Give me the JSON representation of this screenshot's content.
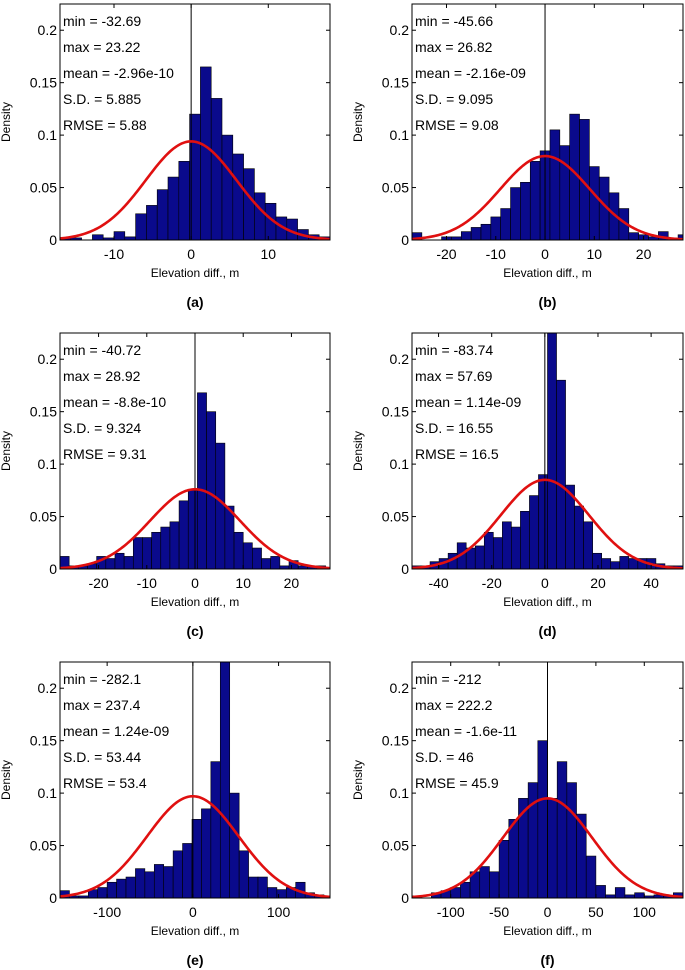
{
  "figure": {
    "panels_description": "Six density histograms of elevation difference with fitted normal curves"
  },
  "chart_data": [
    {
      "type": "bar",
      "overlay": "normal-fit",
      "panel_label": "(a)",
      "title": "",
      "xlabel": "Elevation diff., m",
      "ylabel": "Density",
      "xlim": [
        -17,
        18
      ],
      "ylim": [
        0,
        0.225
      ],
      "xticks": [
        -10,
        0,
        10
      ],
      "xtick_labels": [
        "-10",
        "0",
        "10"
      ],
      "yticks": [
        0,
        0.05,
        0.1,
        0.15,
        0.2
      ],
      "ytick_labels": [
        "0",
        "0.05",
        "0.1",
        "0.15",
        "0.2"
      ],
      "stats": [
        "min = -32.69",
        "max = 23.22",
        "mean = -2.96e-10",
        "S.D. = 5.885",
        "RMSE = 5.88"
      ],
      "bin_start": -17,
      "bin_width": 1.4,
      "values": [
        0.002,
        0.002,
        0.0,
        0.005,
        0.002,
        0.008,
        0.003,
        0.025,
        0.033,
        0.048,
        0.06,
        0.075,
        0.12,
        0.165,
        0.135,
        0.1,
        0.082,
        0.068,
        0.045,
        0.035,
        0.022,
        0.02,
        0.01,
        0.005,
        0.003
      ],
      "curve": {
        "mean": 0,
        "sd": 5.885,
        "peak": 0.094
      }
    },
    {
      "type": "bar",
      "overlay": "normal-fit",
      "panel_label": "(b)",
      "title": "",
      "xlabel": "Elevation diff., m",
      "ylabel": "Density",
      "xlim": [
        -27,
        28
      ],
      "ylim": [
        0,
        0.225
      ],
      "xticks": [
        -20,
        -10,
        0,
        10,
        20
      ],
      "xtick_labels": [
        "-20",
        "-10",
        "0",
        "10",
        "20"
      ],
      "yticks": [
        0,
        0.05,
        0.1,
        0.15,
        0.2
      ],
      "ytick_labels": [
        "0",
        "0.05",
        "0.1",
        "0.15",
        "0.2"
      ],
      "stats": [
        "min = -45.66",
        "max = 26.82",
        "mean = -2.16e-09",
        "S.D. = 9.095",
        "RMSE = 9.08"
      ],
      "bin_start": -27,
      "bin_width": 2,
      "values": [
        0.007,
        0.0,
        0.0,
        0.003,
        0.003,
        0.008,
        0.012,
        0.015,
        0.022,
        0.03,
        0.05,
        0.055,
        0.075,
        0.085,
        0.105,
        0.09,
        0.12,
        0.115,
        0.07,
        0.06,
        0.045,
        0.03,
        0.007,
        0.005,
        0.003,
        0.008,
        0.0,
        0.005
      ],
      "curve": {
        "mean": 0,
        "sd": 9.095,
        "peak": 0.08
      }
    },
    {
      "type": "bar",
      "overlay": "normal-fit",
      "panel_label": "(c)",
      "title": "",
      "xlabel": "Elevation diff., m",
      "ylabel": "Density",
      "xlim": [
        -28,
        28
      ],
      "ylim": [
        0,
        0.225
      ],
      "xticks": [
        -20,
        -10,
        0,
        10,
        20
      ],
      "xtick_labels": [
        "-20",
        "-10",
        "0",
        "10",
        "20"
      ],
      "yticks": [
        0,
        0.05,
        0.1,
        0.15,
        0.2
      ],
      "ytick_labels": [
        "0",
        "0.05",
        "0.1",
        "0.15",
        "0.2"
      ],
      "stats": [
        "min = -40.72",
        "max = 28.92",
        "mean = -8.8e-10",
        "S.D. = 9.324",
        "RMSE = 9.31"
      ],
      "bin_start": -28,
      "bin_width": 1.9,
      "values": [
        0.012,
        0.003,
        0.003,
        0.005,
        0.012,
        0.01,
        0.015,
        0.012,
        0.03,
        0.03,
        0.035,
        0.04,
        0.045,
        0.065,
        0.075,
        0.168,
        0.15,
        0.12,
        0.06,
        0.035,
        0.025,
        0.02,
        0.01,
        0.012,
        0.003,
        0.008,
        0.003,
        0.003,
        0.003
      ],
      "curve": {
        "mean": 0,
        "sd": 9.324,
        "peak": 0.076
      }
    },
    {
      "type": "bar",
      "overlay": "normal-fit",
      "panel_label": "(d)",
      "title": "",
      "xlabel": "Elevation diff., m",
      "ylabel": "Density",
      "xlim": [
        -50,
        52
      ],
      "ylim": [
        0,
        0.225
      ],
      "xticks": [
        -40,
        -20,
        0,
        20,
        40
      ],
      "xtick_labels": [
        "-40",
        "-20",
        "0",
        "20",
        "40"
      ],
      "yticks": [
        0,
        0.05,
        0.1,
        0.15,
        0.2
      ],
      "ytick_labels": [
        "0",
        "0.05",
        "0.1",
        "0.15",
        "0.2"
      ],
      "stats": [
        "min = -83.74",
        "max = 57.69",
        "mean = 1.14e-09",
        "S.D. = 16.55",
        "RMSE = 16.5"
      ],
      "bin_start": -50,
      "bin_width": 3.4,
      "values": [
        0.003,
        0.003,
        0.007,
        0.01,
        0.015,
        0.025,
        0.02,
        0.022,
        0.035,
        0.03,
        0.045,
        0.04,
        0.055,
        0.07,
        0.09,
        0.225,
        0.18,
        0.08,
        0.06,
        0.045,
        0.015,
        0.01,
        0.007,
        0.012,
        0.01,
        0.01,
        0.01,
        0.005,
        0.003,
        0.003
      ],
      "curve": {
        "mean": 0,
        "sd": 16.55,
        "peak": 0.085
      }
    },
    {
      "type": "bar",
      "overlay": "normal-fit",
      "panel_label": "(e)",
      "title": "",
      "xlabel": "Elevation diff., m",
      "ylabel": "Density",
      "xlim": [
        -155,
        160
      ],
      "ylim": [
        0,
        0.225
      ],
      "xticks": [
        -100,
        0,
        100
      ],
      "xtick_labels": [
        "-100",
        "0",
        "100"
      ],
      "stats": [
        "min = -282.1",
        "max = 237.4",
        "mean = 1.24e-09",
        "S.D. = 53.44",
        "RMSE = 53.4"
      ],
      "yticks": [
        0,
        0.05,
        0.1,
        0.15,
        0.2
      ],
      "ytick_labels": [
        "0",
        "0.05",
        "0.1",
        "0.15",
        "0.2"
      ],
      "bin_start": -155,
      "bin_width": 11,
      "values": [
        0.007,
        0.002,
        0.002,
        0.008,
        0.01,
        0.015,
        0.018,
        0.02,
        0.028,
        0.025,
        0.032,
        0.03,
        0.045,
        0.052,
        0.075,
        0.085,
        0.13,
        0.225,
        0.1,
        0.045,
        0.02,
        0.02,
        0.01,
        0.008,
        0.01,
        0.015,
        0.005,
        0.003,
        0.002
      ],
      "curve": {
        "mean": 0,
        "sd": 53.44,
        "peak": 0.097
      }
    },
    {
      "type": "bar",
      "overlay": "normal-fit",
      "panel_label": "(f)",
      "title": "",
      "xlabel": "Elevation diff., m",
      "ylabel": "Density",
      "xlim": [
        -140,
        140
      ],
      "ylim": [
        0,
        0.225
      ],
      "xticks": [
        -100,
        -50,
        0,
        50,
        100
      ],
      "xtick_labels": [
        "-100",
        "-50",
        "0",
        "50",
        "100"
      ],
      "yticks": [
        0,
        0.05,
        0.1,
        0.15,
        0.2
      ],
      "ytick_labels": [
        "0",
        "0.05",
        "0.1",
        "0.15",
        "0.2"
      ],
      "stats": [
        "min = -212",
        "max = 222.2",
        "mean = -1.6e-11",
        "S.D. = 46",
        "RMSE = 45.9"
      ],
      "bin_start": -140,
      "bin_width": 10,
      "values": [
        0.002,
        0.0,
        0.005,
        0.007,
        0.01,
        0.015,
        0.025,
        0.03,
        0.025,
        0.055,
        0.075,
        0.095,
        0.11,
        0.15,
        0.095,
        0.13,
        0.11,
        0.08,
        0.04,
        0.012,
        0.003,
        0.01,
        0.003,
        0.005,
        0.002,
        0.003,
        0.002,
        0.005
      ],
      "curve": {
        "mean": 0,
        "sd": 46,
        "peak": 0.095
      }
    }
  ]
}
